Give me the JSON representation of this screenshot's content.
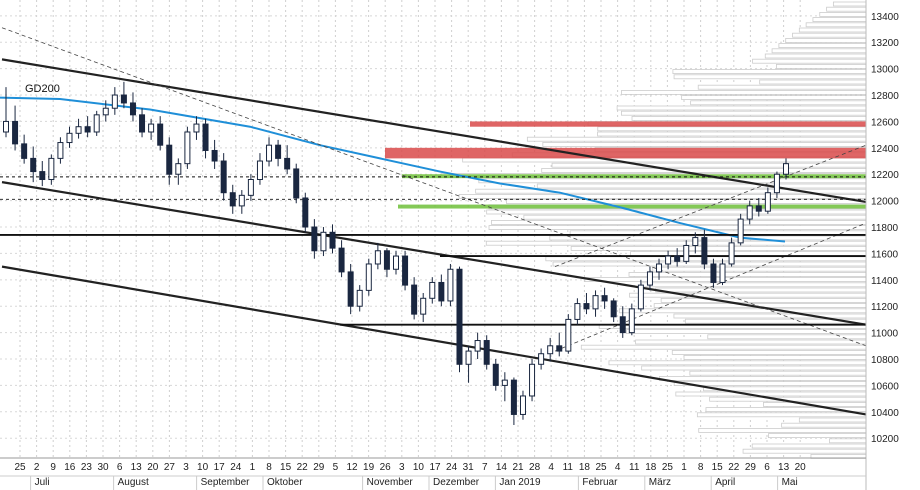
{
  "chart_data": {
    "type": "candlestick",
    "title": "",
    "xlabel": "",
    "ylabel": "",
    "ylim": [
      10050,
      13520
    ],
    "y_ticks": [
      10200,
      10400,
      10600,
      10800,
      11000,
      11200,
      11400,
      11600,
      11800,
      12000,
      12200,
      12400,
      12600,
      12800,
      13000,
      13200,
      13400
    ],
    "x_day_ticks": [
      "25",
      "2",
      "9",
      "16",
      "23",
      "30",
      "6",
      "13",
      "20",
      "27",
      "3",
      "10",
      "17",
      "24",
      "1",
      "8",
      "15",
      "22",
      "29",
      "5",
      "12",
      "19",
      "26",
      "3",
      "10",
      "17",
      "24",
      "31",
      "7",
      "14",
      "21",
      "28",
      "4",
      "11",
      "18",
      "25",
      "4",
      "11",
      "18",
      "25",
      "1",
      "8",
      "15",
      "22",
      "29",
      "6",
      "13",
      "20"
    ],
    "months": [
      "Juli",
      "August",
      "September",
      "Oktober",
      "November",
      "Dezember",
      "Jan 2019",
      "Februar",
      "März",
      "April",
      "Mai"
    ],
    "moving_average": {
      "name": "GD200",
      "color": "#1f8fd8",
      "points": [
        [
          0,
          12780
        ],
        [
          60,
          12770
        ],
        [
          150,
          12690
        ],
        [
          250,
          12560
        ],
        [
          320,
          12420
        ],
        [
          380,
          12320
        ],
        [
          440,
          12220
        ],
        [
          500,
          12130
        ],
        [
          560,
          12060
        ],
        [
          620,
          11950
        ],
        [
          680,
          11830
        ],
        [
          740,
          11720
        ],
        [
          785,
          11690
        ]
      ]
    },
    "candles_ohlc_by_day": [
      [
        0,
        12520,
        12860,
        12480,
        12600
      ],
      [
        1,
        12600,
        12720,
        12380,
        12430
      ],
      [
        2,
        12430,
        12500,
        12280,
        12320
      ],
      [
        3,
        12320,
        12410,
        12140,
        12220
      ],
      [
        4,
        12220,
        12300,
        12110,
        12160
      ],
      [
        5,
        12160,
        12350,
        12120,
        12320
      ],
      [
        6,
        12320,
        12480,
        12280,
        12440
      ],
      [
        7,
        12440,
        12560,
        12400,
        12510
      ],
      [
        8,
        12510,
        12620,
        12470,
        12560
      ],
      [
        9,
        12560,
        12640,
        12480,
        12520
      ],
      [
        10,
        12520,
        12680,
        12490,
        12650
      ],
      [
        11,
        12650,
        12760,
        12600,
        12700
      ],
      [
        12,
        12700,
        12860,
        12650,
        12800
      ],
      [
        13,
        12800,
        12900,
        12700,
        12740
      ],
      [
        14,
        12740,
        12820,
        12600,
        12650
      ],
      [
        15,
        12650,
        12700,
        12480,
        12520
      ],
      [
        16,
        12520,
        12620,
        12460,
        12580
      ],
      [
        17,
        12580,
        12640,
        12380,
        12420
      ],
      [
        18,
        12420,
        12480,
        12120,
        12200
      ],
      [
        19,
        12200,
        12320,
        12120,
        12280
      ],
      [
        20,
        12280,
        12560,
        12240,
        12520
      ],
      [
        21,
        12520,
        12640,
        12460,
        12580
      ],
      [
        22,
        12580,
        12620,
        12320,
        12380
      ],
      [
        23,
        12380,
        12460,
        12240,
        12300
      ],
      [
        24,
        12300,
        12360,
        12000,
        12060
      ],
      [
        25,
        12060,
        12120,
        11900,
        11960
      ],
      [
        26,
        11960,
        12080,
        11900,
        12040
      ],
      [
        27,
        12040,
        12200,
        12000,
        12160
      ],
      [
        28,
        12160,
        12360,
        12120,
        12300
      ],
      [
        29,
        12300,
        12480,
        12260,
        12420
      ],
      [
        30,
        12420,
        12460,
        12260,
        12320
      ],
      [
        31,
        12320,
        12420,
        12200,
        12240
      ],
      [
        32,
        12240,
        12280,
        11980,
        12020
      ],
      [
        33,
        12020,
        12060,
        11760,
        11800
      ],
      [
        34,
        11800,
        11860,
        11560,
        11620
      ],
      [
        35,
        11620,
        11800,
        11580,
        11760
      ],
      [
        36,
        11760,
        11820,
        11600,
        11640
      ],
      [
        37,
        11640,
        11700,
        11420,
        11460
      ],
      [
        38,
        11460,
        11520,
        11140,
        11200
      ],
      [
        39,
        11200,
        11360,
        11160,
        11320
      ],
      [
        40,
        11320,
        11560,
        11280,
        11520
      ],
      [
        41,
        11520,
        11680,
        11480,
        11620
      ],
      [
        42,
        11620,
        11640,
        11420,
        11480
      ],
      [
        43,
        11480,
        11620,
        11440,
        11580
      ],
      [
        44,
        11580,
        11620,
        11320,
        11360
      ],
      [
        45,
        11360,
        11420,
        11100,
        11140
      ],
      [
        46,
        11140,
        11300,
        11080,
        11260
      ],
      [
        47,
        11260,
        11420,
        11220,
        11380
      ],
      [
        48,
        11380,
        11440,
        11200,
        11240
      ],
      [
        49,
        11240,
        11520,
        11200,
        11480
      ],
      [
        50,
        11480,
        11500,
        10700,
        10760
      ],
      [
        51,
        10760,
        10900,
        10620,
        10860
      ],
      [
        52,
        10860,
        11000,
        10800,
        10940
      ],
      [
        53,
        10940,
        10980,
        10720,
        10760
      ],
      [
        54,
        10760,
        10800,
        10560,
        10600
      ],
      [
        55,
        10600,
        10700,
        10480,
        10640
      ],
      [
        56,
        10640,
        10660,
        10300,
        10380
      ],
      [
        57,
        10380,
        10560,
        10340,
        10520
      ],
      [
        58,
        10520,
        10800,
        10480,
        10760
      ],
      [
        59,
        10760,
        10880,
        10720,
        10840
      ],
      [
        60,
        10840,
        10960,
        10780,
        10900
      ],
      [
        61,
        10900,
        11000,
        10820,
        10860
      ],
      [
        62,
        10860,
        11140,
        10840,
        11100
      ],
      [
        63,
        11100,
        11260,
        11060,
        11220
      ],
      [
        64,
        11220,
        11300,
        11140,
        11180
      ],
      [
        65,
        11180,
        11320,
        11120,
        11280
      ],
      [
        66,
        11280,
        11340,
        11180,
        11240
      ],
      [
        67,
        11240,
        11260,
        11080,
        11120
      ],
      [
        68,
        11120,
        11200,
        10960,
        11000
      ],
      [
        69,
        11000,
        11220,
        10980,
        11180
      ],
      [
        70,
        11180,
        11400,
        11160,
        11360
      ],
      [
        71,
        11360,
        11500,
        11320,
        11460
      ],
      [
        72,
        11460,
        11560,
        11400,
        11520
      ],
      [
        73,
        11520,
        11620,
        11480,
        11580
      ],
      [
        74,
        11580,
        11640,
        11500,
        11540
      ],
      [
        75,
        11540,
        11700,
        11520,
        11660
      ],
      [
        76,
        11660,
        11760,
        11600,
        11720
      ],
      [
        77,
        11720,
        11780,
        11480,
        11520
      ],
      [
        78,
        11520,
        11560,
        11340,
        11380
      ],
      [
        79,
        11380,
        11560,
        11360,
        11520
      ],
      [
        80,
        11520,
        11720,
        11500,
        11680
      ],
      [
        81,
        11680,
        11900,
        11660,
        11860
      ],
      [
        82,
        11860,
        12000,
        11820,
        11960
      ],
      [
        83,
        11960,
        12020,
        11880,
        11920
      ],
      [
        84,
        11920,
        12100,
        11900,
        12060
      ],
      [
        85,
        12060,
        12220,
        12020,
        12200
      ],
      [
        86,
        12200,
        12320,
        12160,
        12280
      ]
    ],
    "horizontal_levels": [
      12180,
      12010,
      11740,
      11580,
      11060
    ],
    "zones": [
      {
        "from": 12560,
        "to": 12600,
        "color": "#d94a4a"
      },
      {
        "from": 12320,
        "to": 12400,
        "color": "#d94a4a"
      },
      {
        "from": 12170,
        "to": 12200,
        "color": "#6fbf3a"
      },
      {
        "from": 11940,
        "to": 11970,
        "color": "#6fbf3a"
      }
    ],
    "trend_lines": [
      {
        "from": [
          0,
          13070
        ],
        "to": [
          1,
          11990
        ],
        "style": "solid"
      },
      {
        "from": [
          0,
          12140
        ],
        "to": [
          1,
          11060
        ],
        "style": "solid"
      },
      {
        "from": [
          0,
          11500
        ],
        "to": [
          1,
          10380
        ],
        "style": "solid"
      },
      {
        "from": [
          0,
          13310
        ],
        "to": [
          1,
          10900
        ],
        "style": "dashed"
      }
    ],
    "volume_profile_color": "#cccccc"
  }
}
